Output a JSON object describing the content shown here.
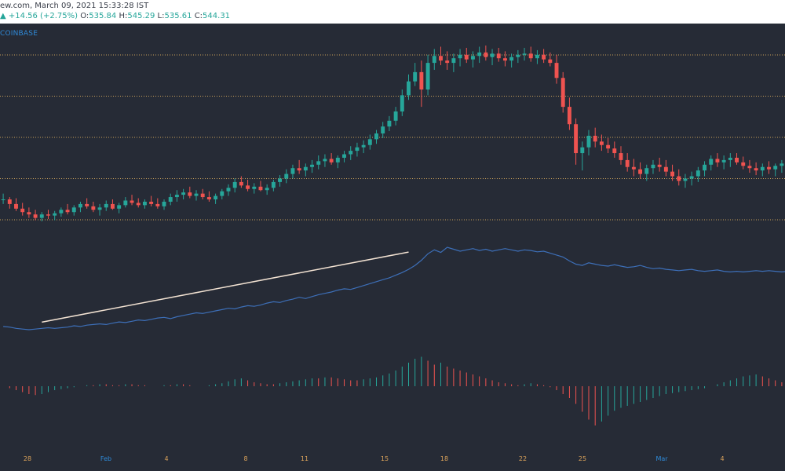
{
  "header": {
    "title": "ew.com, March 09, 2021 15:33:28 IST",
    "change_prefix": "▲ +14.56 (+2.75%)",
    "o_label": "O:",
    "o_value": "535.84",
    "h_label": "H:",
    "h_value": "545.29",
    "l_label": "L:",
    "l_value": "535.61",
    "c_label": "C:",
    "c_value": "544.31"
  },
  "exchange_label": "COINBASE",
  "colors": {
    "background": "#262b36",
    "up": "#26a69a",
    "down": "#ef5350",
    "line": "#3d6fb8",
    "trendline": "#f3e3d3",
    "level": "#c9a05a",
    "month_label": "#2f8ad8",
    "day_label": "#d8a15a"
  },
  "xaxis": {
    "ticks": [
      "28",
      "Feb",
      "4",
      "8",
      "11",
      "15",
      "18",
      "22",
      "25",
      "Mar",
      "4"
    ],
    "month_ticks": [
      "Feb",
      "Mar"
    ]
  },
  "chart_data": [
    {
      "type": "candlestick",
      "title": "",
      "horizontal_levels": 5,
      "ohlc": [
        [
          300,
          305,
          296,
          300
        ],
        [
          300,
          302,
          292,
          296
        ],
        [
          296,
          301,
          290,
          292
        ],
        [
          292,
          297,
          286,
          289
        ],
        [
          289,
          293,
          284,
          287
        ],
        [
          287,
          291,
          282,
          284
        ],
        [
          284,
          289,
          281,
          287
        ],
        [
          287,
          291,
          283,
          286
        ],
        [
          286,
          290,
          282,
          288
        ],
        [
          288,
          293,
          285,
          291
        ],
        [
          291,
          296,
          287,
          289
        ],
        [
          289,
          295,
          286,
          293
        ],
        [
          293,
          298,
          289,
          296
        ],
        [
          296,
          301,
          292,
          294
        ],
        [
          294,
          298,
          289,
          291
        ],
        [
          291,
          296,
          286,
          293
        ],
        [
          293,
          299,
          290,
          296
        ],
        [
          296,
          300,
          291,
          292
        ],
        [
          292,
          297,
          288,
          295
        ],
        [
          295,
          302,
          293,
          299
        ],
        [
          299,
          304,
          295,
          297
        ],
        [
          297,
          301,
          293,
          295
        ],
        [
          295,
          300,
          292,
          298
        ],
        [
          298,
          303,
          294,
          296
        ],
        [
          296,
          301,
          292,
          294
        ],
        [
          294,
          300,
          291,
          298
        ],
        [
          298,
          305,
          295,
          302
        ],
        [
          302,
          308,
          298,
          304
        ],
        [
          304,
          309,
          300,
          306
        ],
        [
          306,
          311,
          301,
          303
        ],
        [
          303,
          308,
          299,
          305
        ],
        [
          305,
          309,
          300,
          302
        ],
        [
          302,
          307,
          298,
          300
        ],
        [
          300,
          305,
          296,
          303
        ],
        [
          303,
          309,
          300,
          307
        ],
        [
          307,
          313,
          303,
          310
        ],
        [
          310,
          318,
          306,
          315
        ],
        [
          315,
          320,
          310,
          312
        ],
        [
          312,
          317,
          307,
          309
        ],
        [
          309,
          314,
          305,
          311
        ],
        [
          311,
          316,
          307,
          308
        ],
        [
          308,
          313,
          304,
          310
        ],
        [
          310,
          317,
          307,
          315
        ],
        [
          315,
          321,
          311,
          318
        ],
        [
          318,
          326,
          314,
          322
        ],
        [
          322,
          330,
          318,
          327
        ],
        [
          327,
          334,
          322,
          325
        ],
        [
          325,
          331,
          320,
          328
        ],
        [
          328,
          334,
          323,
          330
        ],
        [
          330,
          338,
          326,
          333
        ],
        [
          333,
          339,
          328,
          335
        ],
        [
          335,
          340,
          330,
          332
        ],
        [
          332,
          338,
          327,
          336
        ],
        [
          336,
          342,
          332,
          339
        ],
        [
          339,
          346,
          334,
          342
        ],
        [
          342,
          349,
          337,
          345
        ],
        [
          345,
          351,
          340,
          347
        ],
        [
          347,
          356,
          343,
          352
        ],
        [
          352,
          360,
          348,
          357
        ],
        [
          357,
          367,
          353,
          363
        ],
        [
          363,
          372,
          359,
          368
        ],
        [
          368,
          380,
          364,
          376
        ],
        [
          376,
          395,
          372,
          390
        ],
        [
          390,
          408,
          386,
          402
        ],
        [
          402,
          418,
          398,
          410
        ],
        [
          410,
          420,
          380,
          395
        ],
        [
          395,
          425,
          390,
          418
        ],
        [
          418,
          430,
          412,
          424
        ],
        [
          424,
          432,
          416,
          420
        ],
        [
          420,
          428,
          412,
          418
        ],
        [
          418,
          426,
          410,
          422
        ],
        [
          422,
          430,
          415,
          425
        ],
        [
          425,
          431,
          418,
          421
        ],
        [
          421,
          428,
          414,
          424
        ],
        [
          424,
          432,
          418,
          427
        ],
        [
          427,
          433,
          420,
          423
        ],
        [
          423,
          430,
          416,
          426
        ],
        [
          426,
          431,
          419,
          422
        ],
        [
          422,
          428,
          415,
          420
        ],
        [
          420,
          426,
          414,
          423
        ],
        [
          423,
          429,
          418,
          425
        ],
        [
          425,
          431,
          420,
          426
        ],
        [
          426,
          432,
          419,
          422
        ],
        [
          422,
          429,
          417,
          425
        ],
        [
          425,
          430,
          418,
          421
        ],
        [
          421,
          427,
          415,
          418
        ],
        [
          418,
          425,
          400,
          405
        ],
        [
          405,
          410,
          375,
          380
        ],
        [
          380,
          388,
          360,
          365
        ],
        [
          365,
          370,
          330,
          340
        ],
        [
          340,
          350,
          325,
          345
        ],
        [
          345,
          360,
          338,
          355
        ],
        [
          355,
          362,
          345,
          350
        ],
        [
          350,
          356,
          342,
          347
        ],
        [
          347,
          353,
          340,
          344
        ],
        [
          344,
          350,
          336,
          340
        ],
        [
          340,
          346,
          330,
          334
        ],
        [
          334,
          340,
          324,
          328
        ],
        [
          328,
          335,
          320,
          326
        ],
        [
          326,
          332,
          318,
          322
        ],
        [
          322,
          330,
          316,
          327
        ],
        [
          327,
          334,
          322,
          330
        ],
        [
          330,
          336,
          324,
          328
        ],
        [
          328,
          334,
          320,
          324
        ],
        [
          324,
          330,
          316,
          320
        ],
        [
          320,
          326,
          312,
          316
        ],
        [
          316,
          322,
          310,
          318
        ],
        [
          318,
          324,
          312,
          320
        ],
        [
          320,
          328,
          315,
          325
        ],
        [
          325,
          333,
          320,
          330
        ],
        [
          330,
          338,
          325,
          335
        ],
        [
          335,
          340,
          328,
          332
        ],
        [
          332,
          338,
          326,
          334
        ],
        [
          334,
          340,
          328,
          336
        ],
        [
          336,
          340,
          330,
          332
        ],
        [
          332,
          337,
          326,
          329
        ],
        [
          329,
          334,
          323,
          327
        ],
        [
          327,
          332,
          321,
          325
        ],
        [
          325,
          331,
          320,
          328
        ],
        [
          328,
          333,
          322,
          326
        ],
        [
          326,
          331,
          320,
          329
        ],
        [
          329,
          334,
          323,
          331
        ]
      ]
    },
    {
      "type": "line",
      "values": [
        120,
        119,
        117,
        116,
        115,
        116,
        117,
        118,
        117,
        118,
        119,
        121,
        120,
        122,
        123,
        124,
        123,
        125,
        127,
        126,
        128,
        130,
        129,
        131,
        133,
        134,
        132,
        135,
        137,
        139,
        141,
        140,
        142,
        144,
        146,
        148,
        147,
        150,
        152,
        151,
        153,
        156,
        158,
        157,
        160,
        162,
        165,
        163,
        166,
        169,
        171,
        173,
        176,
        178,
        177,
        180,
        183,
        186,
        189,
        192,
        195,
        199,
        203,
        208,
        214,
        222,
        232,
        238,
        234,
        242,
        239,
        236,
        238,
        240,
        237,
        239,
        236,
        238,
        240,
        238,
        236,
        238,
        237,
        235,
        236,
        233,
        230,
        227,
        221,
        216,
        214,
        218,
        216,
        214,
        213,
        215,
        213,
        211,
        212,
        214,
        211,
        209,
        210,
        208,
        207,
        206,
        207,
        208,
        206,
        205,
        206,
        207,
        205,
        204,
        205,
        204,
        205,
        206,
        205,
        206,
        205,
        204,
        205,
        205
      ]
    },
    {
      "type": "bar",
      "values": [
        0,
        -2,
        -4,
        -6,
        -8,
        -9,
        -8,
        -6,
        -4,
        -3,
        -2,
        -1,
        0,
        1,
        1,
        2,
        2,
        1,
        1,
        2,
        2,
        1,
        1,
        0,
        0,
        1,
        1,
        2,
        2,
        1,
        0,
        0,
        1,
        2,
        3,
        5,
        7,
        8,
        6,
        4,
        3,
        2,
        2,
        3,
        4,
        5,
        6,
        7,
        8,
        8,
        9,
        9,
        8,
        7,
        6,
        6,
        7,
        8,
        9,
        11,
        13,
        16,
        20,
        24,
        28,
        30,
        26,
        22,
        24,
        20,
        18,
        16,
        14,
        12,
        10,
        8,
        6,
        4,
        3,
        2,
        1,
        2,
        3,
        2,
        1,
        -1,
        -4,
        -8,
        -12,
        -18,
        -26,
        -34,
        -40,
        -36,
        -30,
        -25,
        -22,
        -20,
        -18,
        -16,
        -14,
        -12,
        -10,
        -8,
        -7,
        -6,
        -5,
        -4,
        -3,
        -2,
        0,
        2,
        4,
        6,
        8,
        10,
        11,
        12,
        10,
        8,
        6,
        4,
        2,
        1
      ]
    }
  ]
}
